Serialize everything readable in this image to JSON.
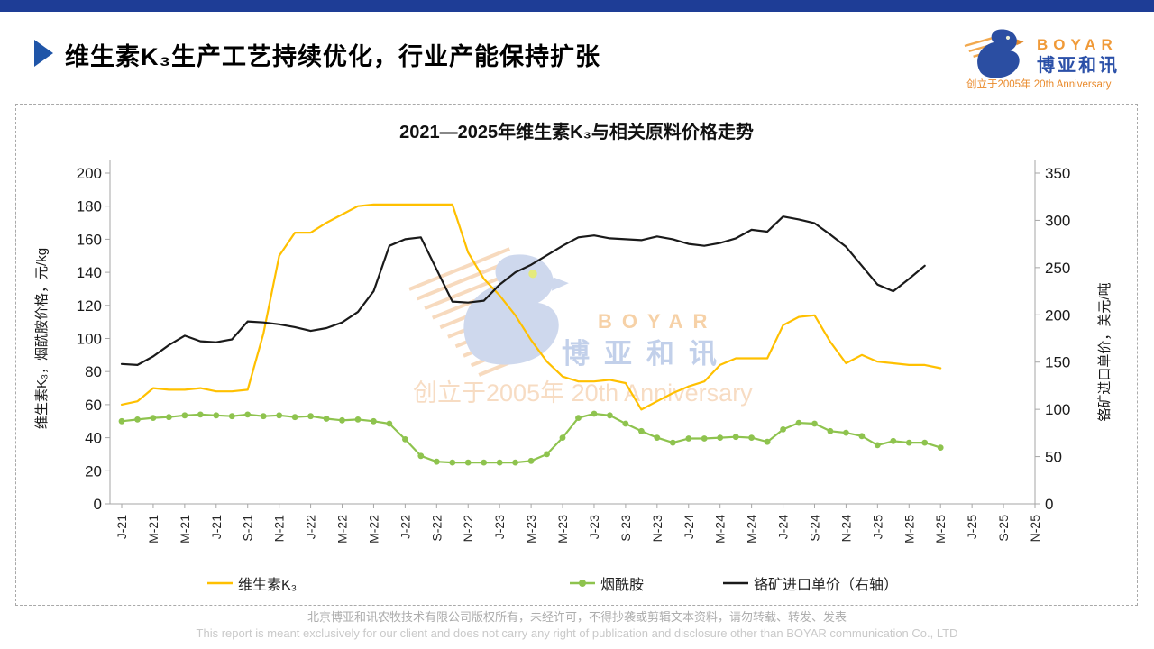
{
  "header": {
    "title": "维生素K₃生产工艺持续优化，行业产能保持扩张"
  },
  "logo": {
    "brand_en": "BOYAR",
    "brand_cn": "博亚和讯",
    "tagline": "创立于2005年 20th Anniversary",
    "blue": "#2B4EA2",
    "orange": "#F09A38"
  },
  "watermark": {
    "brand_en": "BOYAR",
    "brand_cn": "博亚和讯",
    "tagline": "创立于2005年 20th Anniversary"
  },
  "footer": {
    "line1": "北京博亚和讯农牧技术有限公司版权所有，未经许可，不得抄袭或剪辑文本资料，请勿转载、转发、发表",
    "line2": "This report is meant exclusively for our client and does not carry any right of publication and disclosure other than BOYAR communication Co., LTD"
  },
  "chart_data": {
    "type": "line",
    "title": "2021—2025年维生素K₃与相关原料价格走势",
    "grid": false,
    "legend_position": "bottom",
    "x_tick_labels": [
      "J-21",
      "M-21",
      "M-21",
      "J-21",
      "S-21",
      "N-21",
      "J-22",
      "M-22",
      "M-22",
      "J-22",
      "S-22",
      "N-22",
      "J-23",
      "M-23",
      "M-23",
      "J-23",
      "S-23",
      "N-23",
      "J-24",
      "M-24",
      "M-24",
      "J-24",
      "S-24",
      "N-24",
      "J-25",
      "M-25",
      "M-25",
      "J-25",
      "S-25",
      "N-25"
    ],
    "months": [
      "2021-01",
      "2021-02",
      "2021-03",
      "2021-04",
      "2021-05",
      "2021-06",
      "2021-07",
      "2021-08",
      "2021-09",
      "2021-10",
      "2021-11",
      "2021-12",
      "2022-01",
      "2022-02",
      "2022-03",
      "2022-04",
      "2022-05",
      "2022-06",
      "2022-07",
      "2022-08",
      "2022-09",
      "2022-10",
      "2022-11",
      "2022-12",
      "2023-01",
      "2023-02",
      "2023-03",
      "2023-04",
      "2023-05",
      "2023-06",
      "2023-07",
      "2023-08",
      "2023-09",
      "2023-10",
      "2023-11",
      "2023-12",
      "2024-01",
      "2024-02",
      "2024-03",
      "2024-04",
      "2024-05",
      "2024-06",
      "2024-07",
      "2024-08",
      "2024-09",
      "2024-10",
      "2024-11",
      "2024-12",
      "2025-01",
      "2025-02",
      "2025-03",
      "2025-04",
      "2025-05"
    ],
    "left_axis": {
      "title": "维生素K₃，烟酰胺价格，元/kg",
      "min": 0,
      "max": 200,
      "step": 20
    },
    "right_axis": {
      "title": "铬矿进口单价，美元/吨",
      "min": 0,
      "max": 350,
      "step": 50
    },
    "series": [
      {
        "name": "维生素K₃",
        "axis": "left",
        "color": "#FFC000",
        "marker": "none",
        "values": [
          60,
          62,
          70,
          69,
          69,
          70,
          68,
          68,
          69,
          103,
          150,
          164,
          164,
          170,
          175,
          180,
          181,
          181,
          181,
          181,
          181,
          181,
          152,
          136,
          126,
          114,
          99,
          86,
          77,
          74,
          74,
          75,
          73,
          57,
          62,
          67,
          71,
          74,
          84,
          88,
          88,
          88,
          108,
          113,
          114,
          98,
          85,
          90,
          86,
          85,
          84,
          84,
          82
        ]
      },
      {
        "name": "烟酰胺",
        "axis": "left",
        "color": "#8EC34E",
        "marker": "circle",
        "values": [
          50,
          51,
          52,
          52.5,
          53.5,
          54,
          53.5,
          53,
          54,
          53,
          53.5,
          52.5,
          53,
          51.5,
          50.5,
          51,
          50,
          48.5,
          39,
          29,
          25.5,
          25,
          25,
          25,
          25,
          25,
          26,
          30,
          40,
          52,
          54.5,
          53.5,
          48.5,
          44,
          40,
          37,
          39.5,
          39.5,
          40,
          40.5,
          40,
          37.5,
          45,
          49,
          48.5,
          44,
          43,
          41,
          35.5,
          38,
          37,
          37,
          34
        ]
      },
      {
        "name": "铬矿进口单价（右轴）",
        "axis": "right",
        "color": "#1A1A1A",
        "marker": "none",
        "values": [
          148,
          147,
          156,
          168,
          178,
          172,
          171,
          174,
          193,
          192,
          190,
          187,
          183,
          186,
          192,
          203,
          225,
          273,
          280,
          282,
          248,
          214,
          213,
          215,
          232,
          245,
          253,
          263,
          273,
          282,
          284,
          281,
          280,
          279,
          283,
          280,
          275,
          273,
          276,
          281,
          290,
          288,
          304,
          301,
          297,
          285,
          272,
          252,
          232,
          225,
          238,
          252,
          null
        ]
      }
    ]
  }
}
